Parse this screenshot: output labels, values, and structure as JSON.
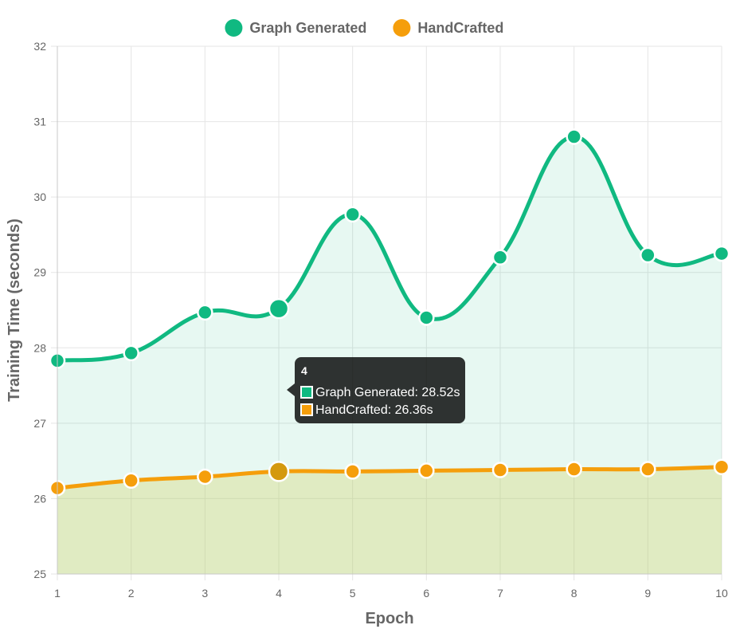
{
  "chart_data": {
    "type": "line",
    "title": "",
    "xlabel": "Epoch",
    "ylabel": "Training Time (seconds)",
    "categories": [
      "1",
      "2",
      "3",
      "4",
      "5",
      "6",
      "7",
      "8",
      "9",
      "10"
    ],
    "ylim": [
      25,
      32
    ],
    "yticks": [
      "25",
      "26",
      "27",
      "28",
      "29",
      "30",
      "31",
      "32"
    ],
    "grid": true,
    "legend_position": "top",
    "series": [
      {
        "name": "Graph Generated",
        "color": "#10b981",
        "fill": "#10b981",
        "values": [
          27.83,
          27.93,
          28.47,
          28.52,
          29.77,
          28.4,
          29.2,
          30.8,
          29.23,
          29.25
        ]
      },
      {
        "name": "HandCrafted",
        "color": "#f59e0b",
        "fill": "#d4d46a",
        "values": [
          26.14,
          26.24,
          26.29,
          26.36,
          26.36,
          26.37,
          26.38,
          26.39,
          26.39,
          26.42
        ]
      }
    ],
    "tooltip": {
      "index": 3,
      "title": "4",
      "lines": [
        "Graph Generated: 28.52s",
        "HandCrafted: 26.36s"
      ]
    }
  }
}
